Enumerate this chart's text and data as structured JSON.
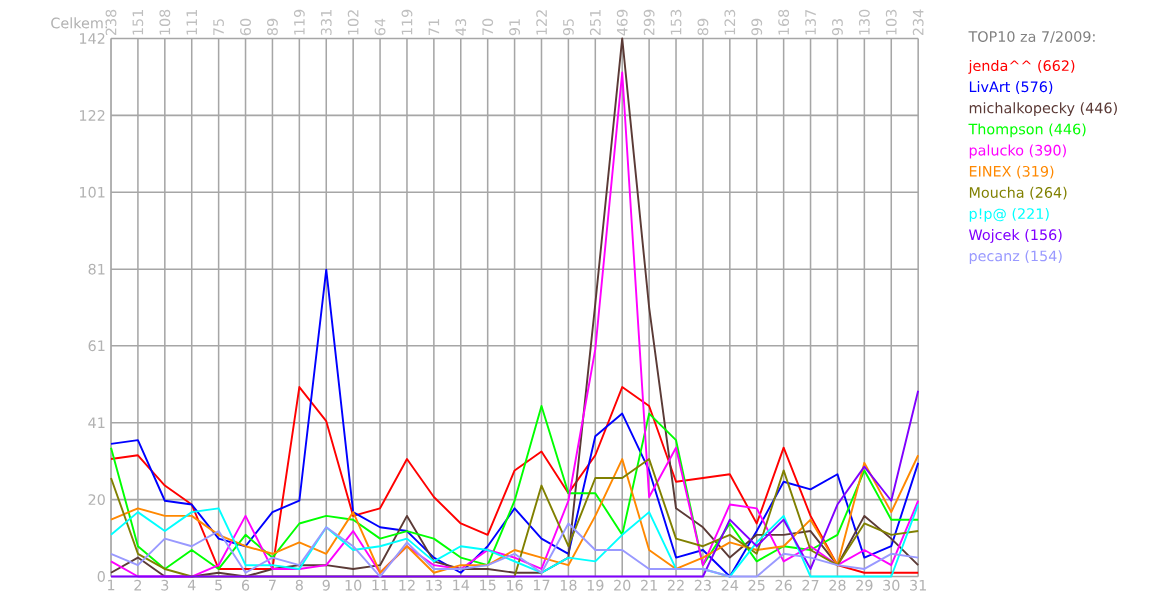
{
  "chart_data": {
    "type": "line",
    "legend_title": "TOP10 za 7/2009:",
    "annotations": [
      "Celkem:",
      "238",
      "151",
      "108",
      "111",
      "75",
      "60",
      "89",
      "119",
      "331",
      "102",
      "64",
      "119",
      "71",
      "43",
      "70",
      "91",
      "122",
      "95",
      "251",
      "469",
      "299",
      "153",
      "89",
      "123",
      "99",
      "168",
      "137",
      "93",
      "130",
      "103",
      "234"
    ],
    "x": [
      1,
      2,
      3,
      4,
      5,
      6,
      7,
      8,
      9,
      10,
      11,
      12,
      13,
      14,
      15,
      16,
      17,
      18,
      19,
      20,
      21,
      22,
      23,
      24,
      25,
      26,
      27,
      28,
      29,
      30,
      31
    ],
    "xlim": [
      1,
      31
    ],
    "xticks": [
      1,
      2,
      3,
      4,
      5,
      6,
      7,
      8,
      9,
      10,
      11,
      12,
      13,
      14,
      15,
      16,
      17,
      18,
      19,
      20,
      21,
      22,
      23,
      24,
      25,
      26,
      27,
      28,
      29,
      30,
      31
    ],
    "ylim": [
      0,
      142
    ],
    "yticks": [
      0,
      {
        "value": 20.3,
        "label": "20"
      },
      {
        "value": 40.6,
        "label": "41"
      },
      {
        "value": 60.9,
        "label": "61"
      },
      {
        "value": 81.1,
        "label": "81"
      },
      {
        "value": 101.4,
        "label": "101"
      },
      {
        "value": 121.7,
        "label": "122"
      },
      142
    ],
    "grid": true,
    "legend": "right",
    "marker": "none",
    "line_style": "solid",
    "series": [
      {
        "name": "jenda^^ (662)",
        "color": "#ff0000",
        "values": [
          31,
          32,
          24,
          19,
          2,
          2,
          2,
          50,
          41,
          16,
          18,
          31,
          21,
          14,
          11,
          28,
          33,
          22,
          32,
          50,
          45,
          25,
          26,
          27,
          14,
          34,
          16,
          3,
          1,
          1,
          1
        ]
      },
      {
        "name": "LivArt (576)",
        "color": "#0000ff",
        "values": [
          35,
          36,
          20,
          19,
          10,
          8,
          17,
          20,
          81,
          17,
          13,
          12,
          5,
          1,
          8,
          18,
          10,
          6,
          37,
          43,
          28,
          5,
          7,
          0,
          12,
          25,
          23,
          27,
          5,
          8,
          30
        ]
      },
      {
        "name": "michalkopecky (446)",
        "color": "#5b3a36",
        "values": [
          1,
          5,
          0,
          0,
          1,
          0,
          2,
          3,
          3,
          2,
          3,
          16,
          4,
          2,
          2,
          1,
          1,
          5,
          72,
          142,
          71,
          18,
          13,
          5,
          11,
          11,
          12,
          3,
          16,
          10,
          3
        ]
      },
      {
        "name": "Thompson (446)",
        "color": "#00ff00",
        "values": [
          34,
          8,
          2,
          7,
          2,
          11,
          5,
          14,
          16,
          15,
          10,
          12,
          10,
          5,
          3,
          20,
          45,
          22,
          22,
          11,
          43,
          36,
          3,
          14,
          4,
          8,
          7,
          11,
          28,
          15,
          15
        ]
      },
      {
        "name": "palucko (390)",
        "color": "#ff00ff",
        "values": [
          4,
          0,
          0,
          0,
          3,
          16,
          2,
          2,
          3,
          12,
          1,
          8,
          3,
          2,
          7,
          5,
          2,
          20,
          60,
          133,
          21,
          34,
          3,
          19,
          18,
          4,
          8,
          3,
          7,
          3,
          20
        ]
      },
      {
        "name": "EINEX (319)",
        "color": "#ff8800",
        "values": [
          15,
          18,
          16,
          16,
          11,
          8,
          6,
          9,
          6,
          17,
          1,
          8,
          1,
          3,
          3,
          7,
          5,
          3,
          16,
          31,
          7,
          2,
          5,
          9,
          7,
          8,
          15,
          3,
          30,
          17,
          32
        ]
      },
      {
        "name": "Moucha (264)",
        "color": "#808000",
        "values": [
          26,
          6,
          2,
          0,
          0,
          0,
          0,
          0,
          0,
          0,
          0,
          0,
          0,
          0,
          0,
          0,
          24,
          8,
          26,
          26,
          31,
          10,
          8,
          11,
          6,
          28,
          7,
          3,
          14,
          11,
          12
        ]
      },
      {
        "name": "p!p@ (221)",
        "color": "#00ffff",
        "values": [
          11,
          17,
          12,
          17,
          18,
          3,
          3,
          2,
          13,
          7,
          8,
          10,
          4,
          8,
          7,
          4,
          1,
          5,
          4,
          11,
          17,
          2,
          2,
          0,
          9,
          16,
          0,
          0,
          0,
          0,
          19
        ]
      },
      {
        "name": "Wojcek (156)",
        "color": "#8000ff",
        "values": [
          0,
          0,
          0,
          0,
          0,
          0,
          0,
          0,
          0,
          0,
          0,
          0,
          0,
          0,
          0,
          0,
          0,
          0,
          0,
          0,
          0,
          0,
          0,
          15,
          8,
          15,
          2,
          19,
          29,
          20,
          49
        ]
      },
      {
        "name": "pecanz (154)",
        "color": "#9999ff",
        "values": [
          6,
          3,
          10,
          8,
          12,
          1,
          5,
          3,
          13,
          8,
          0,
          9,
          2,
          2,
          3,
          6,
          1,
          14,
          7,
          7,
          2,
          2,
          2,
          0,
          0,
          6,
          5,
          3,
          2,
          6,
          5
        ]
      }
    ]
  }
}
